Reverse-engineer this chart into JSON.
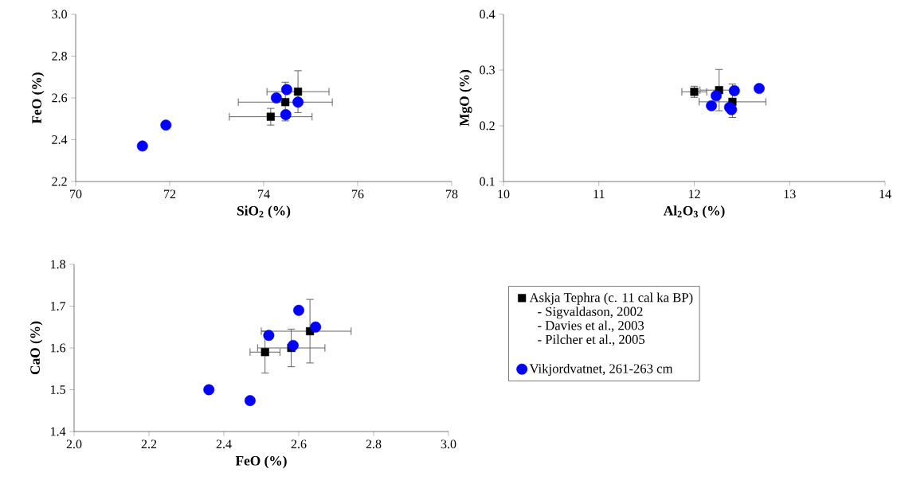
{
  "chart_data": [
    {
      "type": "scatter",
      "xlabel": "SiO$_{2}$ (%)",
      "ylabel": "FeO (%)",
      "xlim": [
        70,
        78
      ],
      "xticks": [
        70,
        72,
        74,
        76,
        78
      ],
      "ylim": [
        2.2,
        3.0
      ],
      "yticks": [
        2.2,
        2.4,
        2.6,
        2.8,
        {
          "value": 3.0,
          "label": "3.0"
        }
      ],
      "grid": false,
      "legend": false,
      "series": [
        {
          "color": "#000000",
          "marker": "square",
          "x": [
            74.73,
            74.46,
            74.15
          ],
          "values": [
            2.63,
            2.58,
            2.51
          ],
          "xerrors": [
            0.66,
            1.0,
            0.88
          ],
          "errors": [
            0.1,
            [
              2.49,
              2.675
            ],
            0.04
          ]
        },
        {
          "color": "#0000ff",
          "marker": "circle",
          "x": [
            71.42,
            71.92,
            74.49,
            74.27,
            74.73,
            74.47
          ],
          "values": [
            2.37,
            2.47,
            2.64,
            2.6,
            2.58,
            2.52
          ]
        }
      ]
    },
    {
      "type": "scatter",
      "xlabel": "Al$_{2}$O$_{3}$ (%)",
      "ylabel": "MgO (%)",
      "xlim": [
        10,
        14
      ],
      "xticks": [
        10,
        11,
        12,
        13,
        14
      ],
      "ylim": [
        0.1,
        0.4
      ],
      "yticks": [
        0.1,
        0.2,
        0.3,
        0.4
      ],
      "grid": false,
      "legend": false,
      "series": [
        {
          "color": "#000000",
          "marker": "square",
          "x": [
            12.0,
            12.26,
            12.4
          ],
          "values": [
            0.261,
            0.264,
            0.243
          ],
          "xerrors": [
            0.13,
            0.2,
            0.35
          ],
          "errors": [
            0.01,
            0.037,
            [
              0.215,
              0.275
            ]
          ]
        },
        {
          "color": "#0000ff",
          "marker": "circle",
          "x": [
            12.42,
            12.68,
            12.23,
            12.18,
            12.37,
            12.39
          ],
          "values": [
            0.263,
            0.267,
            0.254,
            0.236,
            0.233,
            0.229
          ]
        }
      ]
    },
    {
      "type": "scatter",
      "xlabel": "FeO (%)",
      "ylabel": "CaO (%)",
      "xlim": [
        2.0,
        3.0
      ],
      "xticks": [
        {
          "value": 2.0,
          "label": "2.0"
        },
        2.2,
        2.4,
        2.6,
        2.8,
        {
          "value": 3.0,
          "label": "3.0"
        }
      ],
      "ylim": [
        1.4,
        1.8
      ],
      "yticks": [
        1.4,
        1.5,
        1.6,
        1.7,
        1.8
      ],
      "grid": false,
      "legend": "right",
      "annotations": [
        "- Sigvaldason, 2002",
        "- Davies et al., 2003",
        "- Pilcher et al., 2005"
      ],
      "series": [
        {
          "name": "Askja Tephra (c. 11 cal ka BP)",
          "color": "#000000",
          "marker": "square",
          "x": [
            2.51,
            2.58,
            2.63
          ],
          "values": [
            1.59,
            1.6,
            1.64
          ],
          "xerrors": [
            0.04,
            0.09,
            [
              2.5,
              2.74
            ]
          ],
          "errors": [
            0.05,
            0.045,
            0.076
          ]
        },
        {
          "name": "Vikjordvatnet, 261-263 cm",
          "color": "#0000ff",
          "marker": "circle",
          "x": [
            2.36,
            2.47,
            2.6,
            2.645,
            2.52,
            2.585
          ],
          "values": [
            1.5,
            1.474,
            1.69,
            1.65,
            1.63,
            1.606
          ]
        }
      ]
    }
  ]
}
